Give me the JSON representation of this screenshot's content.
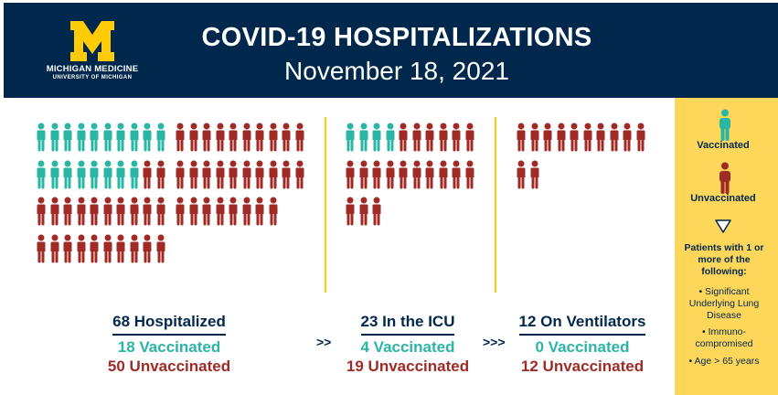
{
  "header": {
    "logo_line1": "MICHIGAN MEDICINE",
    "logo_line2": "UNIVERSITY OF MICHIGAN",
    "title": "COVID-19 HOSPITALIZATIONS",
    "date": "November 18, 2021"
  },
  "colors": {
    "navy": "#00274c",
    "maize": "#ffcb05",
    "vaccinated": "#2ab5a5",
    "unvaccinated": "#a02b26",
    "legend_bg": "#fdd65a"
  },
  "groups": {
    "hospitalized": {
      "total_label": "68 Hospitalized",
      "vaccinated_label": "18 Vaccinated",
      "unvaccinated_label": "50 Unvaccinated"
    },
    "icu": {
      "total_label": "23 In the ICU",
      "vaccinated_label": "4 Vaccinated",
      "unvaccinated_label": "19 Unvaccinated"
    },
    "ventilators": {
      "total_label": "12 On Ventilators",
      "vaccinated_label": "0 Vaccinated",
      "unvaccinated_label": "12 Unvaccinated"
    }
  },
  "pictogram": {
    "hospitalized_left": {
      "vaccinated": 18,
      "unvaccinated": 22
    },
    "hospitalized_right": {
      "vaccinated": 0,
      "unvaccinated": 28
    },
    "icu": {
      "vaccinated": 4,
      "unvaccinated": 19
    },
    "ventilators": {
      "vaccinated": 0,
      "unvaccinated": 12
    }
  },
  "arrows": {
    "first": ">>",
    "second": ">>>"
  },
  "legend": {
    "vaccinated_label": "Vaccinated",
    "unvaccinated_label": "Unvaccinated",
    "criteria_title": "Patients with 1 or more of the following:",
    "criteria": [
      "• Significant Underlying Lung Disease",
      "• Immuno-compromised",
      "• Age > 65 years"
    ]
  }
}
